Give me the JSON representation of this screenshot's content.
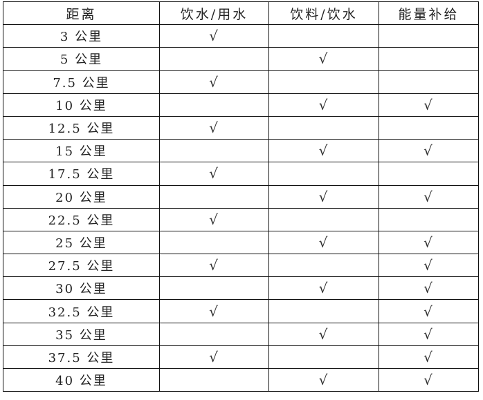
{
  "table": {
    "headers": [
      "距离",
      "饮水/用水",
      "饮料/饮水",
      "能量补给"
    ],
    "check_symbol": "√",
    "rows": [
      {
        "distance": "3 公里",
        "water": true,
        "drink": false,
        "energy": false
      },
      {
        "distance": "5 公里",
        "water": false,
        "drink": true,
        "energy": false
      },
      {
        "distance": "7.5 公里",
        "water": true,
        "drink": false,
        "energy": false
      },
      {
        "distance": "10 公里",
        "water": false,
        "drink": true,
        "energy": true
      },
      {
        "distance": "12.5 公里",
        "water": true,
        "drink": false,
        "energy": false
      },
      {
        "distance": "15 公里",
        "water": false,
        "drink": true,
        "energy": true
      },
      {
        "distance": "17.5 公里",
        "water": true,
        "drink": false,
        "energy": false
      },
      {
        "distance": "20 公里",
        "water": false,
        "drink": true,
        "energy": true
      },
      {
        "distance": "22.5 公里",
        "water": true,
        "drink": false,
        "energy": false
      },
      {
        "distance": "25 公里",
        "water": false,
        "drink": true,
        "energy": true
      },
      {
        "distance": "27.5 公里",
        "water": true,
        "drink": false,
        "energy": true
      },
      {
        "distance": "30 公里",
        "water": false,
        "drink": true,
        "energy": true
      },
      {
        "distance": "32.5 公里",
        "water": true,
        "drink": false,
        "energy": true
      },
      {
        "distance": "35 公里",
        "water": false,
        "drink": true,
        "energy": true
      },
      {
        "distance": "37.5 公里",
        "water": true,
        "drink": false,
        "energy": true
      },
      {
        "distance": "40 公里",
        "water": false,
        "drink": true,
        "energy": true
      }
    ]
  }
}
